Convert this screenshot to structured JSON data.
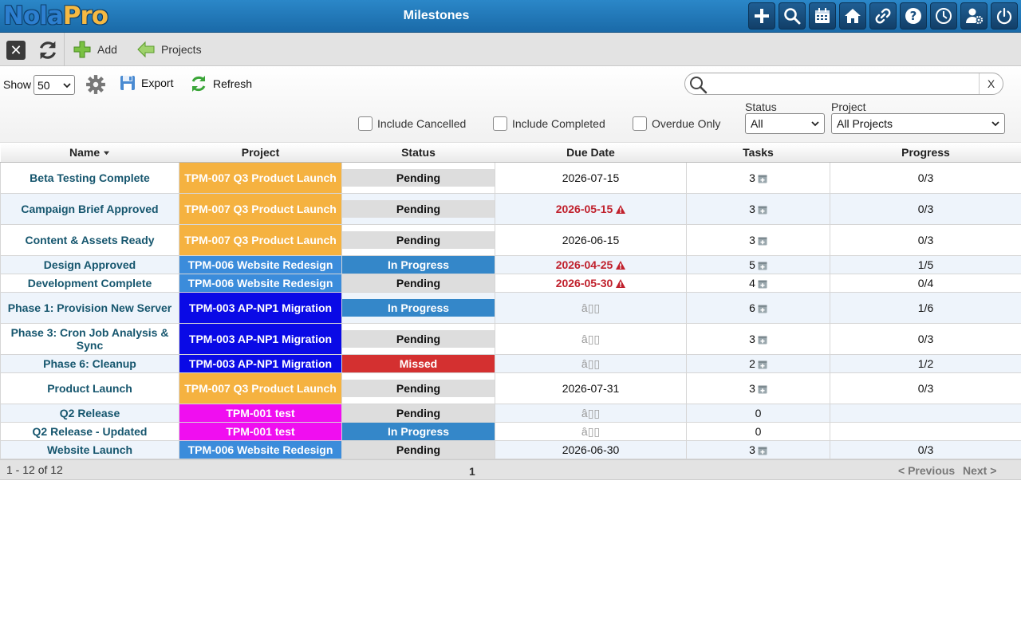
{
  "header": {
    "logo_part1": "Nola",
    "logo_part2": "Pro",
    "title": "Milestones",
    "icons": [
      "plus-icon",
      "search-icon",
      "calendar-icon",
      "home-icon",
      "link-icon",
      "help-icon",
      "clock-icon",
      "user-settings-icon",
      "power-icon"
    ]
  },
  "toolbar": {
    "add_label": "Add",
    "projects_label": "Projects"
  },
  "filters": {
    "show_label": "Show",
    "show_value": "50",
    "export_label": "Export",
    "refresh_label": "Refresh",
    "search_placeholder": "",
    "search_clear": "X",
    "include_cancelled": "Include Cancelled",
    "include_completed": "Include Completed",
    "overdue_only": "Overdue Only",
    "status_label": "Status",
    "status_value": "All",
    "project_label": "Project",
    "project_value": "All Projects"
  },
  "columns": {
    "name": "Name",
    "project": "Project",
    "status": "Status",
    "due": "Due Date",
    "tasks": "Tasks",
    "progress": "Progress"
  },
  "colors": {
    "orange": "#f5b240",
    "blue": "#3b8cdb",
    "navy": "#0a0ae6",
    "magenta": "#f00ef0",
    "pending": "#dddddd",
    "inprogress": "#3487c9",
    "missed": "#d43030"
  },
  "rows": [
    {
      "name": "Beta Testing Complete",
      "project": "TPM-007 Q3 Product Launch",
      "pcolor": "orange",
      "status": "Pending",
      "due": "2026-07-15",
      "late": false,
      "tasks": "3",
      "icon": true,
      "progress": "0/3"
    },
    {
      "name": "Campaign Brief Approved",
      "project": "TPM-007 Q3 Product Launch",
      "pcolor": "orange",
      "status": "Pending",
      "due": "2026-05-15",
      "late": true,
      "tasks": "3",
      "icon": true,
      "progress": "0/3"
    },
    {
      "name": "Content & Assets Ready",
      "project": "TPM-007 Q3 Product Launch",
      "pcolor": "orange",
      "status": "Pending",
      "due": "2026-06-15",
      "late": false,
      "tasks": "3",
      "icon": true,
      "progress": "0/3"
    },
    {
      "name": "Design Approved",
      "project": "TPM-006 Website Redesign",
      "pcolor": "blue",
      "status": "In Progress",
      "due": "2026-04-25",
      "late": true,
      "tasks": "5",
      "icon": true,
      "progress": "1/5"
    },
    {
      "name": "Development Complete",
      "project": "TPM-006 Website Redesign",
      "pcolor": "blue",
      "status": "Pending",
      "due": "2026-05-30",
      "late": true,
      "tasks": "4",
      "icon": true,
      "progress": "0/4"
    },
    {
      "name": "Phase 1: Provision New Server",
      "project": "TPM-003 AP-NP1 Migration",
      "pcolor": "navy",
      "status": "In Progress",
      "due": "â",
      "late": false,
      "tasks": "6",
      "icon": true,
      "progress": "1/6"
    },
    {
      "name": "Phase 3: Cron Job Analysis & Sync",
      "project": "TPM-003 AP-NP1 Migration",
      "pcolor": "navy",
      "status": "Pending",
      "due": "â",
      "late": false,
      "tasks": "3",
      "icon": true,
      "progress": "0/3"
    },
    {
      "name": "Phase 6: Cleanup",
      "project": "TPM-003 AP-NP1 Migration",
      "pcolor": "navy",
      "status": "Missed",
      "due": "â",
      "late": false,
      "tasks": "2",
      "icon": true,
      "progress": "1/2"
    },
    {
      "name": "Product Launch",
      "project": "TPM-007 Q3 Product Launch",
      "pcolor": "orange",
      "status": "Pending",
      "due": "2026-07-31",
      "late": false,
      "tasks": "3",
      "icon": true,
      "progress": "0/3"
    },
    {
      "name": "Q2 Release",
      "project": "TPM-001 test",
      "pcolor": "magenta",
      "status": "Pending",
      "due": "â",
      "late": false,
      "tasks": "0",
      "icon": false,
      "progress": ""
    },
    {
      "name": "Q2 Release - Updated",
      "project": "TPM-001 test",
      "pcolor": "magenta",
      "status": "In Progress",
      "due": "â",
      "late": false,
      "tasks": "0",
      "icon": false,
      "progress": ""
    },
    {
      "name": "Website Launch",
      "project": "TPM-006 Website Redesign",
      "pcolor": "blue",
      "status": "Pending",
      "due": "2026-06-30",
      "late": false,
      "tasks": "3",
      "icon": true,
      "progress": "0/3"
    }
  ],
  "footer": {
    "count": "1 - 12 of 12",
    "page": "1",
    "prev": "< Previous",
    "next": "Next >"
  }
}
